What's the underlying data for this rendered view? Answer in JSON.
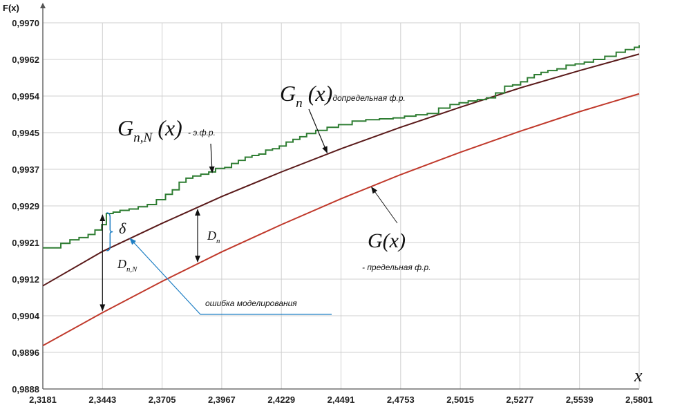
{
  "chart_data": {
    "type": "line",
    "ylabel": "F(x)",
    "xlabel": "x",
    "xlim": [
      2.3181,
      2.5801
    ],
    "ylim": [
      0.9888,
      0.997
    ],
    "x_tick_labels": [
      "2,3181",
      "2,3443",
      "2,3705",
      "2,3967",
      "2,4229",
      "2,4491",
      "2,4753",
      "2,5015",
      "2,5277",
      "2,5539",
      "2,5801"
    ],
    "y_tick_labels": [
      "0,9888",
      "0,9896",
      "0,9904",
      "0,9912",
      "0,9921",
      "0,9929",
      "0,9937",
      "0,9945",
      "0,9954",
      "0,9962",
      "0,9970"
    ],
    "grid": true,
    "series": [
      {
        "name": "G(x) - предельная ф.р.",
        "color": "#c0392b",
        "x": [
          2.3181,
          2.3443,
          2.3705,
          2.3967,
          2.4229,
          2.4491,
          2.4753,
          2.5015,
          2.5277,
          2.5539,
          2.5801
        ],
        "y": [
          0.98977,
          0.99051,
          0.99121,
          0.99187,
          0.99248,
          0.99306,
          0.9936,
          0.9941,
          0.99457,
          0.99501,
          0.99541
        ]
      },
      {
        "name": "Gn(x) - допредельная ф.р.",
        "color": "#5a1a1a",
        "x": [
          2.3181,
          2.3443,
          2.3705,
          2.3967,
          2.4229,
          2.4491,
          2.4753,
          2.5015,
          2.5277,
          2.5539,
          2.5801
        ],
        "y": [
          0.99111,
          0.99188,
          0.99251,
          0.99311,
          0.99366,
          0.99418,
          0.99466,
          0.99511,
          0.99554,
          0.99593,
          0.9963
        ]
      },
      {
        "name": "Gn,N(x) - э.ф.р.",
        "color": "#2e7d32",
        "step": true,
        "x": [
          2.3181,
          2.3215,
          2.326,
          2.33,
          2.334,
          2.338,
          2.341,
          2.344,
          2.346,
          2.349,
          2.352,
          2.356,
          2.36,
          2.364,
          2.368,
          2.372,
          2.375,
          2.378,
          2.381,
          2.384,
          2.3875,
          2.391,
          2.394,
          2.398,
          2.401,
          2.404,
          2.407,
          2.41,
          2.413,
          2.416,
          2.419,
          2.422,
          2.425,
          2.428,
          2.431,
          2.434,
          2.438,
          2.443,
          2.448,
          2.454,
          2.46,
          2.466,
          2.472,
          2.477,
          2.482,
          2.487,
          2.492,
          2.497,
          2.501,
          2.505,
          2.509,
          2.513,
          2.517,
          2.521,
          2.5245,
          2.528,
          2.531,
          2.534,
          2.537,
          2.54,
          2.544,
          2.548,
          2.552,
          2.556,
          2.56,
          2.565,
          2.57,
          2.574,
          2.578,
          2.5801
        ],
        "y": [
          0.99196,
          0.99196,
          0.99206,
          0.99214,
          0.99219,
          0.99226,
          0.99236,
          0.99248,
          0.99273,
          0.99276,
          0.9928,
          0.99283,
          0.99288,
          0.99293,
          0.99304,
          0.99316,
          0.99326,
          0.99343,
          0.99352,
          0.99357,
          0.99361,
          0.99366,
          0.99374,
          0.99376,
          0.99385,
          0.99392,
          0.99399,
          0.99403,
          0.99406,
          0.99415,
          0.99418,
          0.99424,
          0.99433,
          0.99439,
          0.99445,
          0.99452,
          0.99459,
          0.99466,
          0.99472,
          0.9948,
          0.99483,
          0.99485,
          0.99487,
          0.99491,
          0.99494,
          0.99497,
          0.99509,
          0.99517,
          0.99521,
          0.99525,
          0.99528,
          0.99532,
          0.99543,
          0.99558,
          0.99561,
          0.99568,
          0.99577,
          0.99584,
          0.99589,
          0.99593,
          0.99597,
          0.99605,
          0.99608,
          0.99612,
          0.99618,
          0.99625,
          0.99634,
          0.9964,
          0.99645,
          0.9965
        ]
      }
    ],
    "annotations": {
      "gnN": {
        "main": "G",
        "sub": "n,N",
        "arg": "(x)",
        "suffix": "- э.ф.р."
      },
      "gn": {
        "main": "G",
        "sub": "n",
        "arg": "(x)",
        "suffix": "- допредельная ф.р."
      },
      "g": {
        "main": "G(x)",
        "suffix": "- предельная ф.р."
      },
      "dn": {
        "main": "D",
        "sub": "n"
      },
      "dnN": {
        "main": "D",
        "sub": "n,N"
      },
      "delta": "δ",
      "error": "ошибка моделирования"
    }
  }
}
